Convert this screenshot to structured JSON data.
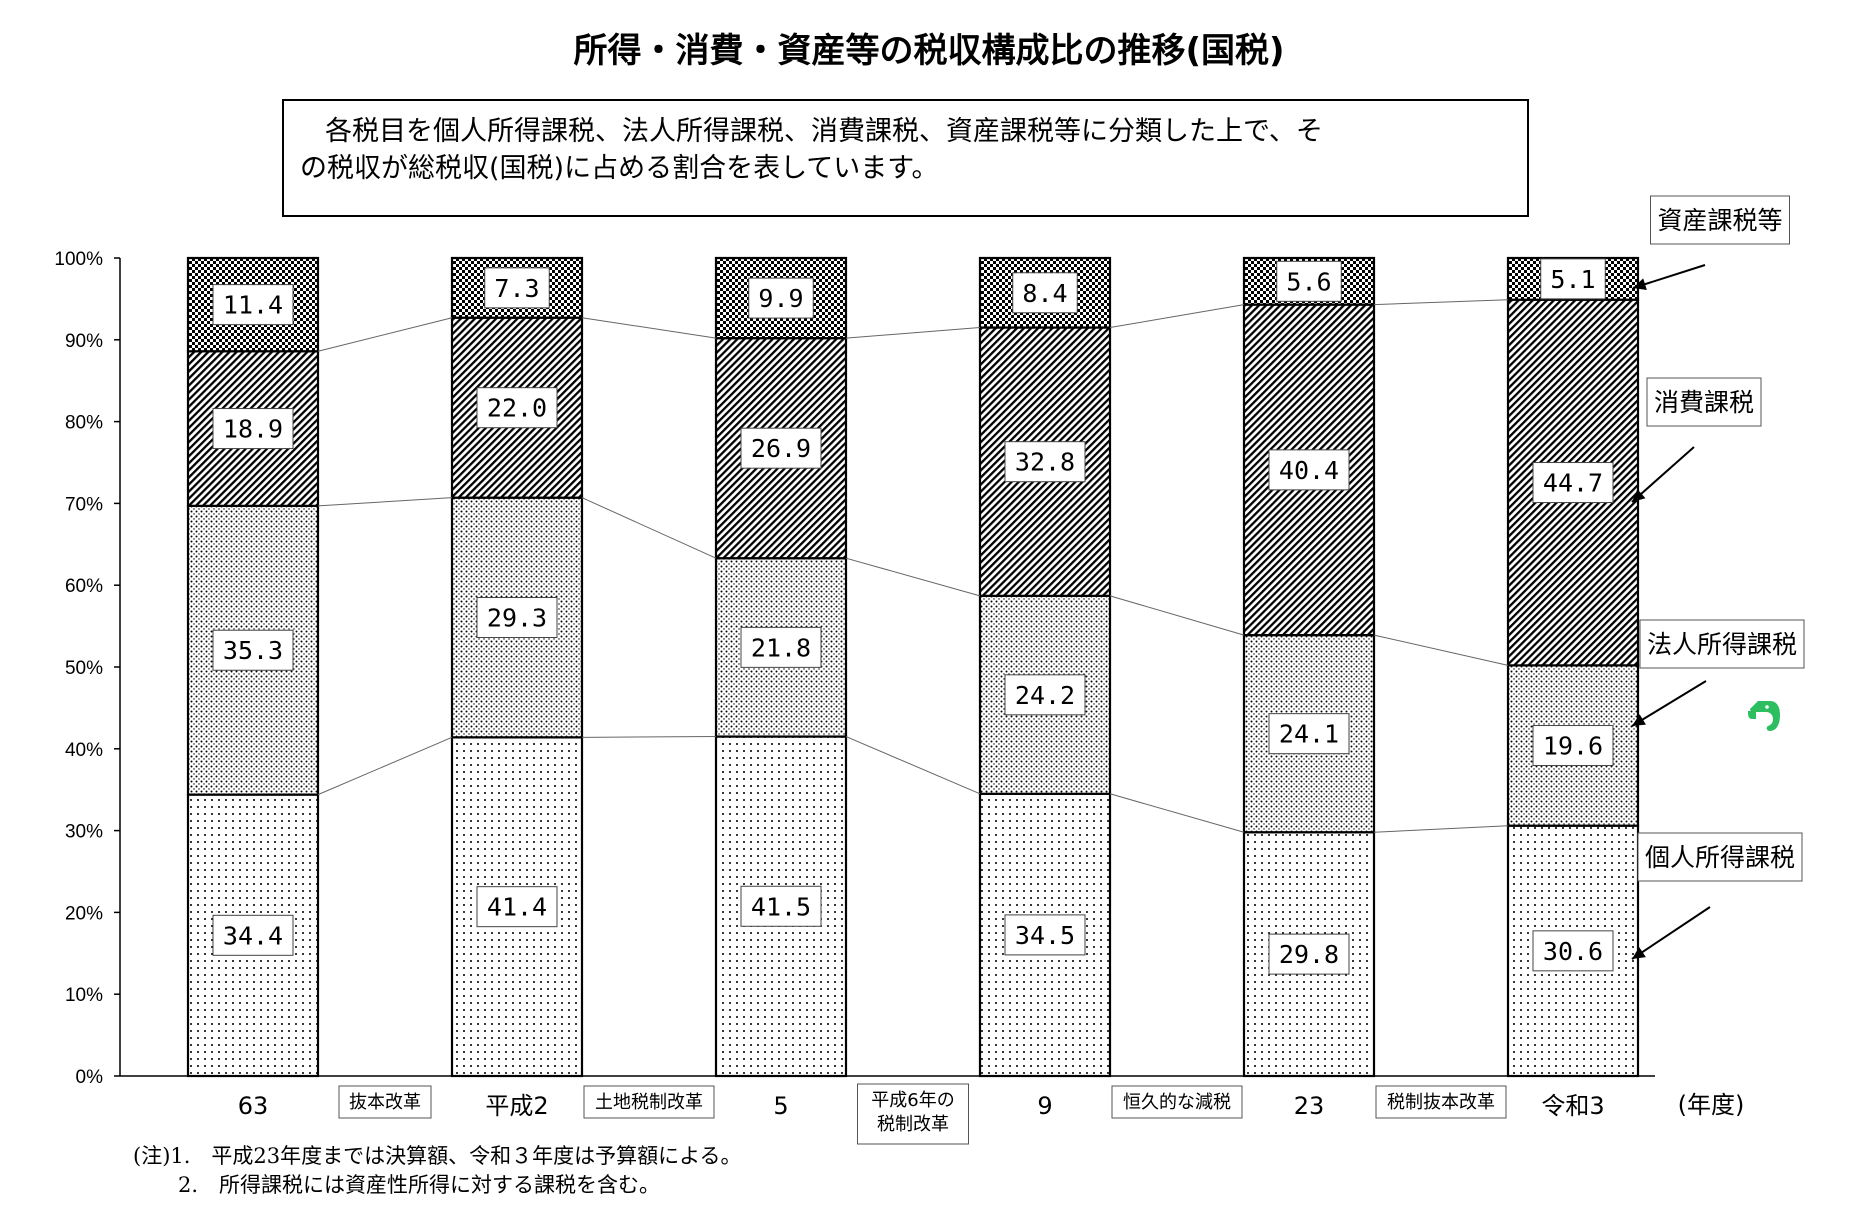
{
  "chart_data": {
    "type": "bar",
    "stacked": true,
    "title": "所得・消費・資産等の税収構成比の推移(国税)",
    "description": [
      "各税目を個人所得課税、法人所得課税、消費課税、資産課税等に分類した上で、そ",
      "の税収が総税収(国税)に占める割合を表しています。"
    ],
    "categories": [
      "63",
      "平成2",
      "5",
      "9",
      "23",
      "令和3"
    ],
    "xlabel": "(年度)",
    "ylabel": "",
    "ylim": [
      0,
      100
    ],
    "y_ticks": [
      "0%",
      "10%",
      "20%",
      "30%",
      "40%",
      "50%",
      "60%",
      "70%",
      "80%",
      "90%",
      "100%"
    ],
    "series": [
      {
        "name": "個人所得課税",
        "values": [
          34.4,
          41.4,
          41.5,
          34.5,
          29.8,
          30.6
        ],
        "labels": [
          "34.4",
          "41.4",
          "41.5",
          "34.5",
          "29.8",
          "30.6"
        ]
      },
      {
        "name": "法人所得課税",
        "values": [
          35.3,
          29.3,
          21.8,
          24.2,
          24.1,
          19.6
        ],
        "labels": [
          "35.3",
          "29.3",
          "21.8",
          "24.2",
          "24.1",
          "19.6"
        ]
      },
      {
        "name": "消費課税",
        "values": [
          18.9,
          22.0,
          26.9,
          32.8,
          40.4,
          44.7
        ],
        "labels": [
          "18.9",
          "22.0",
          "26.9",
          "32.8",
          "40.4",
          "44.7"
        ]
      },
      {
        "name": "資産課税等",
        "values": [
          11.4,
          7.3,
          9.9,
          8.4,
          5.6,
          5.1
        ],
        "labels": [
          "11.4",
          "7.3",
          "9.9",
          "8.4",
          "5.6",
          "5.1"
        ]
      }
    ],
    "legend": [
      "資産課税等",
      "消費課税",
      "法人所得課税",
      "個人所得課税"
    ],
    "reforms": [
      [
        "抜本改革"
      ],
      [
        "土地税制改革"
      ],
      [
        "平成6年の",
        "税制改革"
      ],
      [
        "恒久的な減税"
      ],
      [
        "税制抜本改革"
      ]
    ],
    "notes": [
      "(注)1.　平成23年度までは決算額、令和３年度は予算額による。",
      "2.　所得課税には資産性所得に対する課税を含む。"
    ]
  },
  "colors": {
    "line": "#000000",
    "background": "#ffffff",
    "elephant": "#2dbe60"
  }
}
